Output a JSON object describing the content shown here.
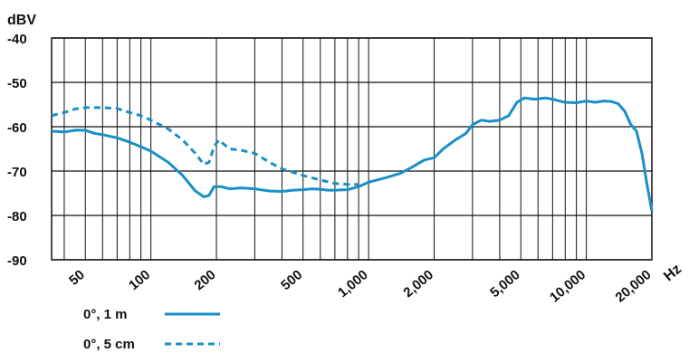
{
  "chart_data": {
    "type": "line",
    "ylabel": "dBV",
    "xlabel": "Hz",
    "x_scale": "log",
    "xlim": [
      35,
      20000
    ],
    "ylim": [
      -90,
      -40
    ],
    "grid": true,
    "legend_position": "bottom-left",
    "y_ticks": [
      -40,
      -50,
      -60,
      -70,
      -80,
      -90
    ],
    "x_tick_labels": [
      {
        "value": 50,
        "label": "50"
      },
      {
        "value": 100,
        "label": "100"
      },
      {
        "value": 200,
        "label": "200"
      },
      {
        "value": 500,
        "label": "500"
      },
      {
        "value": 1000,
        "label": "1,000"
      },
      {
        "value": 2000,
        "label": "2,000"
      },
      {
        "value": 5000,
        "label": "5,000"
      },
      {
        "value": 10000,
        "label": "10,000"
      },
      {
        "value": 20000,
        "label": "20,000"
      }
    ],
    "series": [
      {
        "name": "0°, 1 m",
        "color": "#1a8fc7",
        "style": "solid",
        "points": [
          [
            35,
            -61
          ],
          [
            40,
            -61.2
          ],
          [
            45,
            -60.8
          ],
          [
            50,
            -60.8
          ],
          [
            55,
            -61.5
          ],
          [
            60,
            -61.8
          ],
          [
            70,
            -62.5
          ],
          [
            80,
            -63.5
          ],
          [
            90,
            -64.5
          ],
          [
            100,
            -65.5
          ],
          [
            120,
            -68
          ],
          [
            140,
            -71
          ],
          [
            160,
            -74.5
          ],
          [
            175,
            -75.8
          ],
          [
            185,
            -75.5
          ],
          [
            195,
            -73.5
          ],
          [
            210,
            -73.5
          ],
          [
            230,
            -74
          ],
          [
            260,
            -73.8
          ],
          [
            300,
            -74
          ],
          [
            350,
            -74.5
          ],
          [
            400,
            -74.6
          ],
          [
            450,
            -74.3
          ],
          [
            500,
            -74.2
          ],
          [
            550,
            -74
          ],
          [
            600,
            -74.1
          ],
          [
            650,
            -74.3
          ],
          [
            700,
            -74.3
          ],
          [
            800,
            -74.2
          ],
          [
            900,
            -73.5
          ],
          [
            1000,
            -72.5
          ],
          [
            1200,
            -71.5
          ],
          [
            1400,
            -70.5
          ],
          [
            1600,
            -69
          ],
          [
            1800,
            -67.5
          ],
          [
            2000,
            -67
          ],
          [
            2200,
            -65
          ],
          [
            2500,
            -63
          ],
          [
            2800,
            -61.5
          ],
          [
            3000,
            -59.5
          ],
          [
            3300,
            -58.5
          ],
          [
            3600,
            -58.8
          ],
          [
            4000,
            -58.5
          ],
          [
            4400,
            -57.5
          ],
          [
            4800,
            -54.5
          ],
          [
            5200,
            -53.5
          ],
          [
            5800,
            -53.8
          ],
          [
            6500,
            -53.5
          ],
          [
            7000,
            -53.8
          ],
          [
            7500,
            -54.2
          ],
          [
            8000,
            -54.5
          ],
          [
            9000,
            -54.6
          ],
          [
            10000,
            -54.2
          ],
          [
            11000,
            -54.5
          ],
          [
            12000,
            -54.2
          ],
          [
            13000,
            -54.3
          ],
          [
            14000,
            -54.8
          ],
          [
            15000,
            -56.5
          ],
          [
            16000,
            -59.5
          ],
          [
            17000,
            -61
          ],
          [
            18000,
            -66
          ],
          [
            19000,
            -73
          ],
          [
            20000,
            -79
          ]
        ]
      },
      {
        "name": "0°, 5 cm",
        "color": "#1a8fc7",
        "style": "dashed",
        "points": [
          [
            35,
            -57.5
          ],
          [
            40,
            -56.8
          ],
          [
            45,
            -56
          ],
          [
            50,
            -55.7
          ],
          [
            60,
            -55.7
          ],
          [
            70,
            -55.9
          ],
          [
            80,
            -56.8
          ],
          [
            90,
            -57.5
          ],
          [
            100,
            -58.5
          ],
          [
            120,
            -60.5
          ],
          [
            140,
            -63
          ],
          [
            160,
            -66
          ],
          [
            175,
            -68.5
          ],
          [
            185,
            -68
          ],
          [
            195,
            -64.5
          ],
          [
            205,
            -63
          ],
          [
            230,
            -65
          ],
          [
            260,
            -65.3
          ],
          [
            300,
            -66
          ],
          [
            350,
            -68
          ],
          [
            400,
            -69.5
          ],
          [
            500,
            -71
          ],
          [
            600,
            -72
          ],
          [
            700,
            -72.8
          ],
          [
            800,
            -73
          ],
          [
            900,
            -73
          ]
        ]
      }
    ]
  }
}
